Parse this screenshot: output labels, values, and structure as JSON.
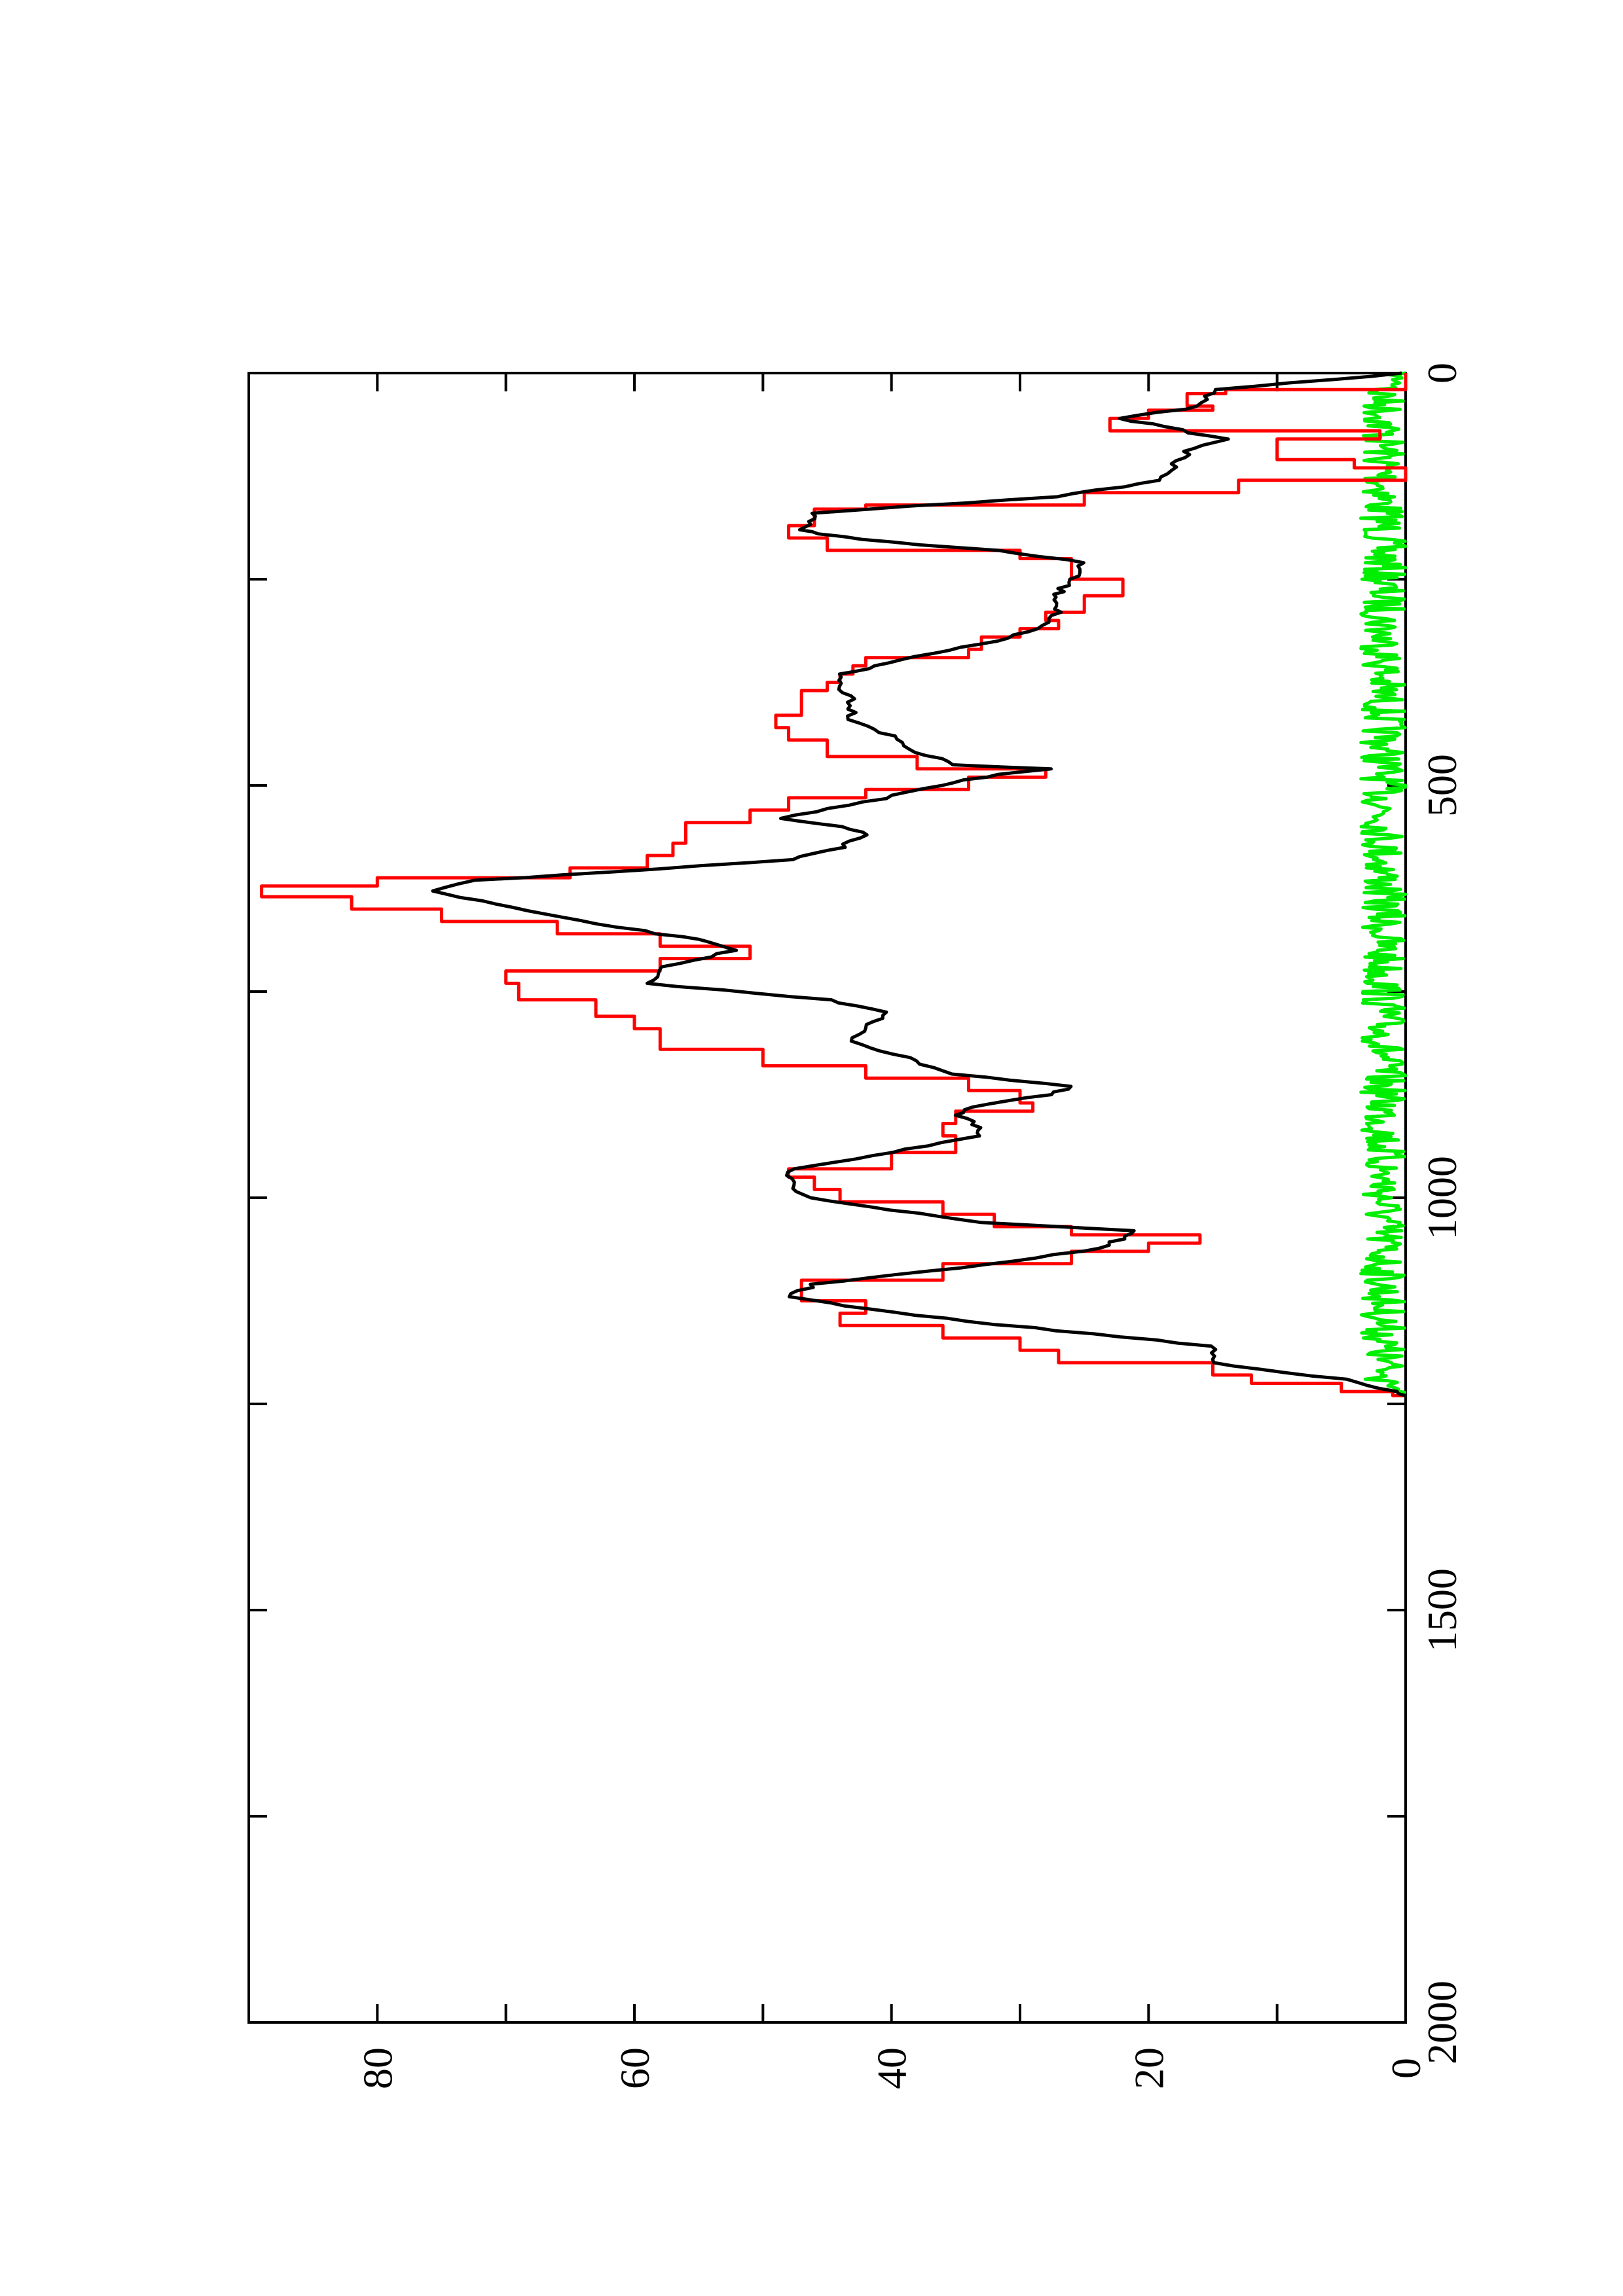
{
  "chart_data": {
    "type": "line",
    "orientation": "rotated-90",
    "title": "",
    "xlabel": "",
    "ylabel": "",
    "xlim": [
      0,
      2000
    ],
    "ylim": [
      0,
      90
    ],
    "x_ticks": [
      "0",
      "500",
      "1000",
      "1500",
      "2000"
    ],
    "y_ticks": [
      "0",
      "20",
      "40",
      "60",
      "80"
    ],
    "grid": false,
    "legend": "none",
    "series": [
      {
        "color": "#000000",
        "points": [
          [
            0,
            0
          ],
          [
            20,
            15
          ],
          [
            40,
            16
          ],
          [
            55,
            22
          ],
          [
            65,
            19
          ],
          [
            80,
            14
          ],
          [
            95,
            17
          ],
          [
            110,
            18
          ],
          [
            130,
            19
          ],
          [
            150,
            27
          ],
          [
            165,
            42
          ],
          [
            170,
            46
          ],
          [
            180,
            46
          ],
          [
            190,
            47
          ],
          [
            195,
            46
          ],
          [
            205,
            40
          ],
          [
            215,
            32
          ],
          [
            230,
            25
          ],
          [
            250,
            26
          ],
          [
            265,
            27
          ],
          [
            275,
            27
          ],
          [
            290,
            27
          ],
          [
            310,
            29
          ],
          [
            325,
            32
          ],
          [
            340,
            37
          ],
          [
            355,
            41
          ],
          [
            365,
            44
          ],
          [
            380,
            44
          ],
          [
            395,
            43
          ],
          [
            420,
            43
          ],
          [
            440,
            40
          ],
          [
            460,
            38
          ],
          [
            475,
            35
          ],
          [
            480,
            28
          ],
          [
            490,
            33
          ],
          [
            500,
            36
          ],
          [
            520,
            42
          ],
          [
            540,
            49
          ],
          [
            550,
            44
          ],
          [
            560,
            42
          ],
          [
            575,
            44
          ],
          [
            590,
            48
          ],
          [
            605,
            62
          ],
          [
            615,
            72
          ],
          [
            628,
            76
          ],
          [
            640,
            72
          ],
          [
            660,
            66
          ],
          [
            680,
            58
          ],
          [
            690,
            54
          ],
          [
            700,
            52
          ],
          [
            720,
            58
          ],
          [
            740,
            59
          ],
          [
            760,
            45
          ],
          [
            775,
            40
          ],
          [
            790,
            42
          ],
          [
            810,
            43
          ],
          [
            830,
            39
          ],
          [
            850,
            35
          ],
          [
            865,
            26
          ],
          [
            875,
            28
          ],
          [
            890,
            34
          ],
          [
            900,
            35
          ],
          [
            915,
            33
          ],
          [
            925,
            33
          ],
          [
            945,
            40
          ],
          [
            965,
            48
          ],
          [
            985,
            48
          ],
          [
            1000,
            46
          ],
          [
            1015,
            40
          ],
          [
            1030,
            33
          ],
          [
            1040,
            21
          ],
          [
            1050,
            22
          ],
          [
            1065,
            25
          ],
          [
            1085,
            35
          ],
          [
            1105,
            46
          ],
          [
            1120,
            48
          ],
          [
            1135,
            42
          ],
          [
            1150,
            34
          ],
          [
            1180,
            15
          ],
          [
            1200,
            15
          ],
          [
            1220,
            5
          ],
          [
            1235,
            1
          ],
          [
            1240,
            0
          ]
        ]
      },
      {
        "color": "#ff0000",
        "points": [
          [
            0,
            0
          ],
          [
            20,
            14
          ],
          [
            25,
            17
          ],
          [
            40,
            15
          ],
          [
            45,
            20
          ],
          [
            55,
            23
          ],
          [
            70,
            2
          ],
          [
            80,
            10
          ],
          [
            90,
            10
          ],
          [
            105,
            4
          ],
          [
            115,
            0
          ],
          [
            130,
            13
          ],
          [
            145,
            25
          ],
          [
            160,
            42
          ],
          [
            165,
            46
          ],
          [
            175,
            46
          ],
          [
            185,
            48
          ],
          [
            200,
            45
          ],
          [
            215,
            30
          ],
          [
            225,
            26
          ],
          [
            240,
            26
          ],
          [
            250,
            22
          ],
          [
            255,
            22
          ],
          [
            270,
            25
          ],
          [
            290,
            28
          ],
          [
            300,
            27
          ],
          [
            310,
            30
          ],
          [
            320,
            33
          ],
          [
            335,
            34
          ],
          [
            345,
            42
          ],
          [
            355,
            43
          ],
          [
            365,
            44
          ],
          [
            375,
            45
          ],
          [
            385,
            47
          ],
          [
            400,
            47
          ],
          [
            415,
            49
          ],
          [
            430,
            48
          ],
          [
            445,
            45
          ],
          [
            465,
            38
          ],
          [
            480,
            28
          ],
          [
            490,
            34
          ],
          [
            505,
            42
          ],
          [
            515,
            48
          ],
          [
            530,
            51
          ],
          [
            545,
            56
          ],
          [
            555,
            56
          ],
          [
            570,
            57
          ],
          [
            585,
            59
          ],
          [
            600,
            65
          ],
          [
            612,
            80
          ],
          [
            622,
            89
          ],
          [
            635,
            82
          ],
          [
            650,
            75
          ],
          [
            665,
            66
          ],
          [
            680,
            58
          ],
          [
            695,
            51
          ],
          [
            710,
            58
          ],
          [
            725,
            70
          ],
          [
            740,
            69
          ],
          [
            760,
            63
          ],
          [
            780,
            60
          ],
          [
            795,
            58
          ],
          [
            820,
            50
          ],
          [
            840,
            42
          ],
          [
            855,
            34
          ],
          [
            870,
            30
          ],
          [
            885,
            29
          ],
          [
            895,
            35
          ],
          [
            910,
            36
          ],
          [
            925,
            35
          ],
          [
            945,
            40
          ],
          [
            965,
            48
          ],
          [
            975,
            46
          ],
          [
            990,
            44
          ],
          [
            1005,
            36
          ],
          [
            1020,
            32
          ],
          [
            1035,
            26
          ],
          [
            1045,
            16
          ],
          [
            1055,
            20
          ],
          [
            1065,
            26
          ],
          [
            1080,
            36
          ],
          [
            1100,
            47
          ],
          [
            1115,
            47
          ],
          [
            1125,
            42
          ],
          [
            1140,
            44
          ],
          [
            1155,
            36
          ],
          [
            1170,
            30
          ],
          [
            1185,
            27
          ],
          [
            1200,
            15
          ],
          [
            1215,
            12
          ],
          [
            1225,
            5
          ],
          [
            1235,
            1
          ],
          [
            1240,
            0
          ]
        ]
      },
      {
        "color": "#00ee00",
        "noise_max": 3.5,
        "x_end": 1240
      }
    ]
  }
}
